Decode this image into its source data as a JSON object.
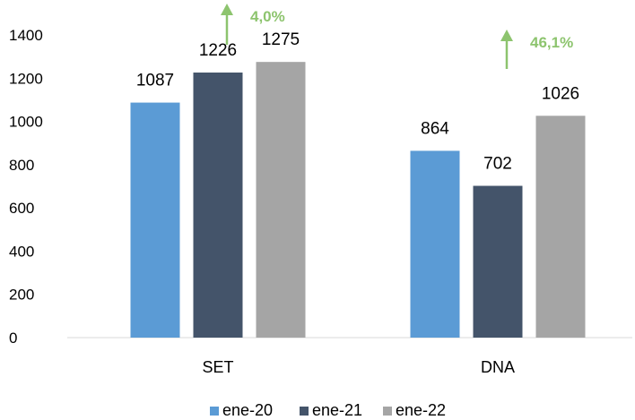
{
  "chart_data": {
    "type": "bar",
    "categories": [
      "SET",
      "DNA"
    ],
    "series": [
      {
        "name": "ene-20",
        "values": [
          1087,
          864
        ],
        "color": "#5b9bd5"
      },
      {
        "name": "ene-21",
        "values": [
          1226,
          702
        ],
        "color": "#44546a"
      },
      {
        "name": "ene-22",
        "values": [
          1275,
          1026
        ],
        "color": "#a5a5a5"
      }
    ],
    "ylim": [
      0,
      1400
    ],
    "yticks": [
      0,
      200,
      400,
      600,
      800,
      1000,
      1200,
      1400
    ],
    "grid": false,
    "legend_position": "bottom",
    "annotations": [
      {
        "category": "SET",
        "text": "4,0%",
        "icon": "up-arrow-icon",
        "color": "#8dc46e"
      },
      {
        "category": "DNA",
        "text": "46,1%",
        "icon": "up-arrow-icon",
        "color": "#8dc46e"
      }
    ]
  }
}
